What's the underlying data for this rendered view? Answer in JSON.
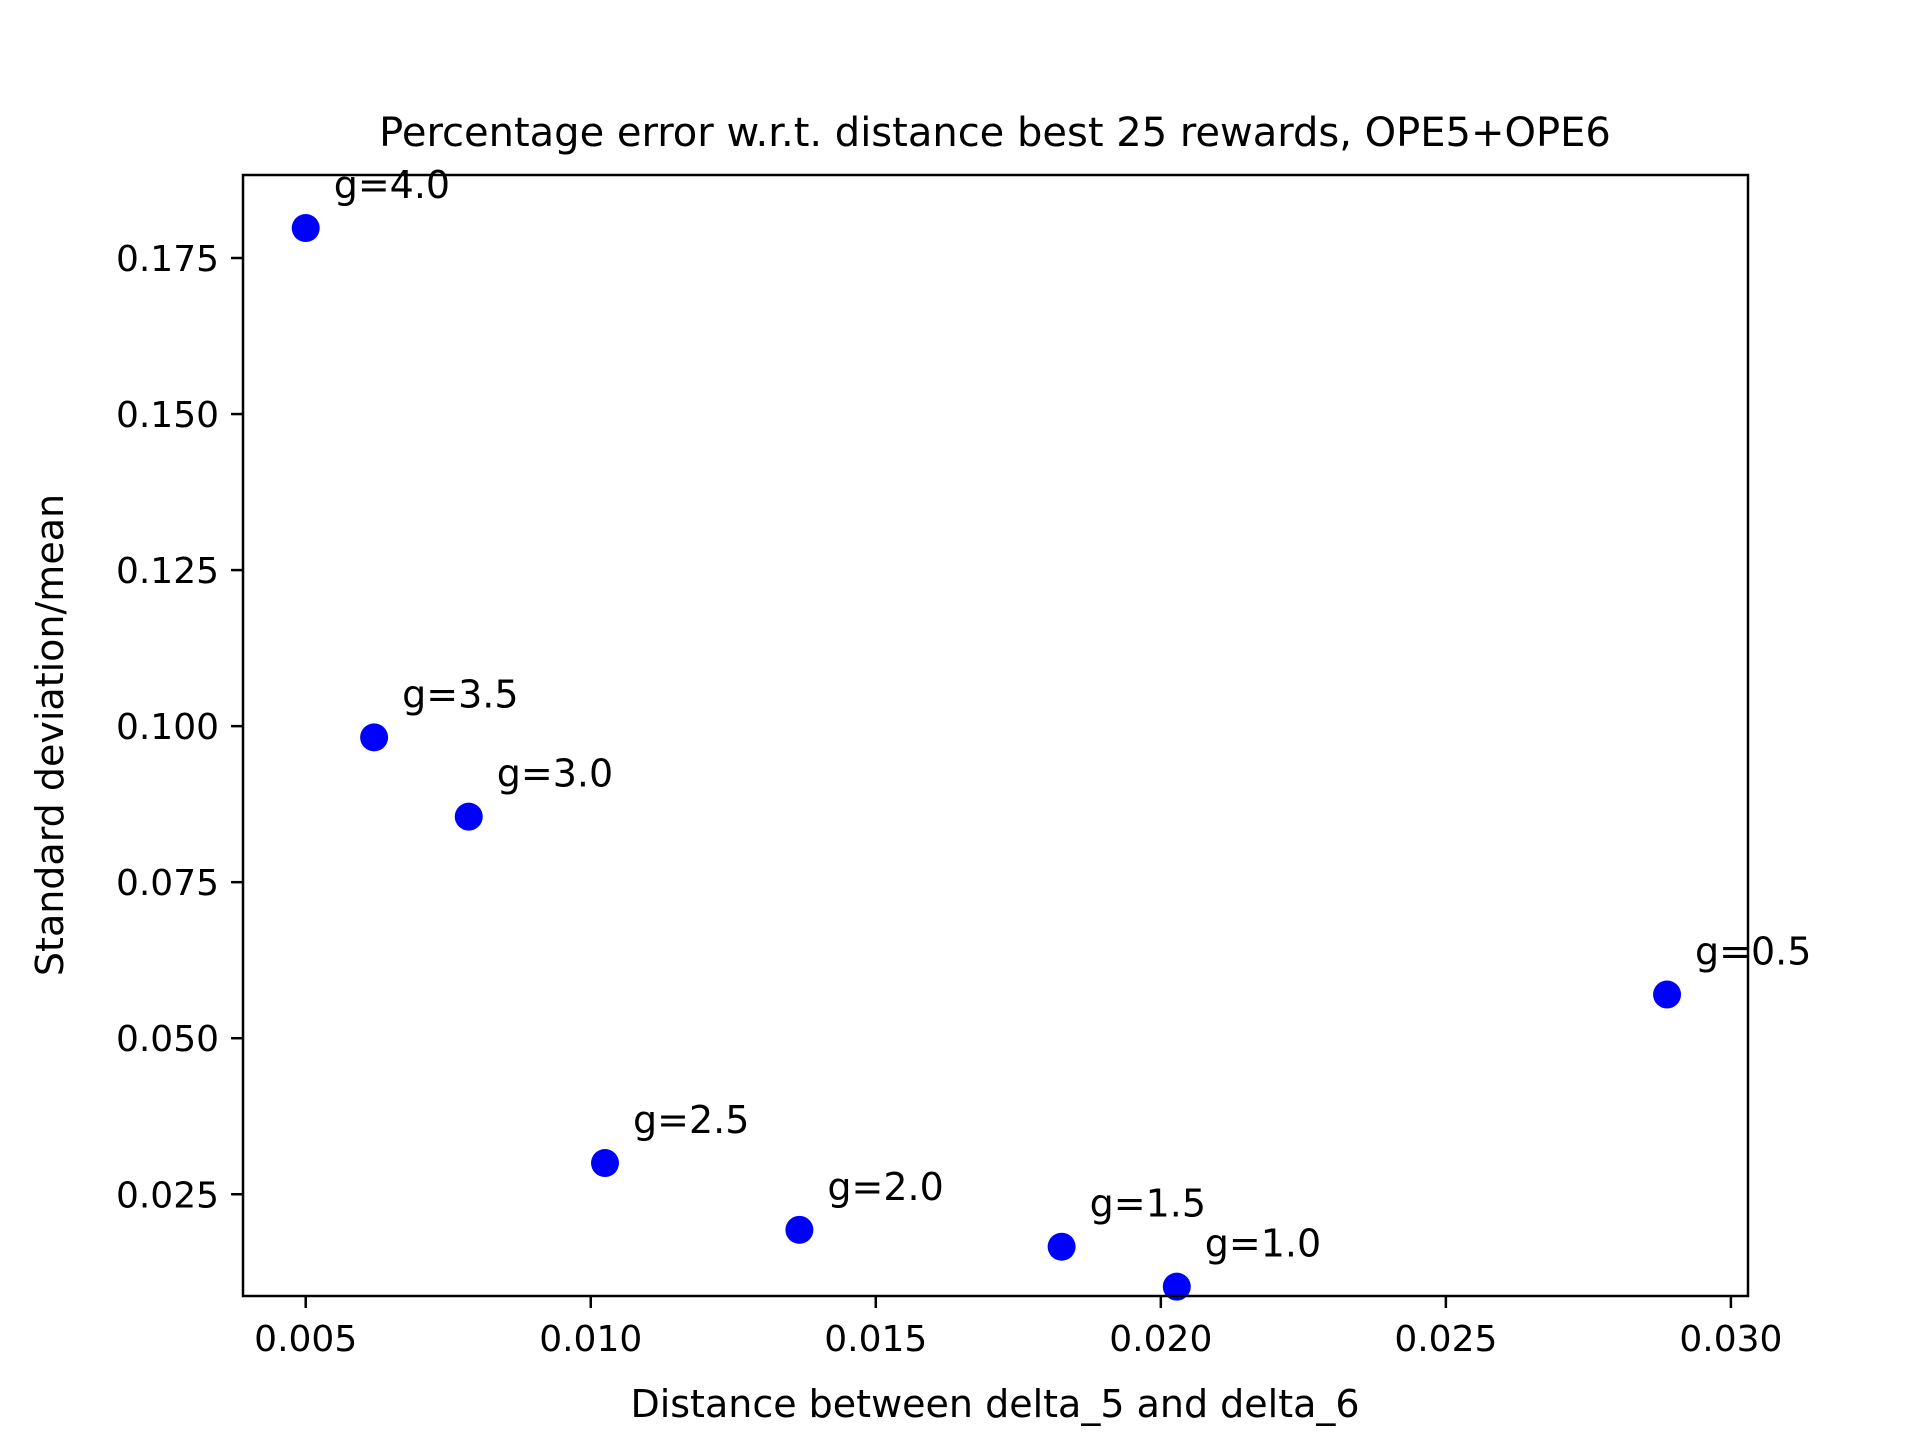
{
  "chart_data": {
    "type": "scatter",
    "title": "Percentage error w.r.t. distance best 25 rewards, OPE5+OPE6",
    "xlabel": "Distance between delta_5 and delta_6",
    "ylabel": "Standard deviation/mean",
    "xlim": [
      0.0039,
      0.0303
    ],
    "ylim": [
      0.0087,
      0.1883
    ],
    "xticks": [
      0.005,
      0.01,
      0.015,
      0.02,
      0.025,
      0.03
    ],
    "xtick_labels": [
      "0.005",
      "0.010",
      "0.015",
      "0.020",
      "0.025",
      "0.030"
    ],
    "yticks": [
      0.025,
      0.05,
      0.075,
      0.1,
      0.125,
      0.15,
      0.175
    ],
    "ytick_labels": [
      "0.025",
      "0.050",
      "0.075",
      "0.100",
      "0.125",
      "0.150",
      "0.175"
    ],
    "grid": false,
    "marker_color": "#0000ff",
    "points": [
      {
        "x": 0.005,
        "y": 0.1798,
        "label": "g=4.0"
      },
      {
        "x": 0.0062,
        "y": 0.0982,
        "label": "g=3.5"
      },
      {
        "x": 0.00786,
        "y": 0.0855,
        "label": "g=3.0"
      },
      {
        "x": 0.01025,
        "y": 0.03,
        "label": "g=2.5"
      },
      {
        "x": 0.01366,
        "y": 0.0193,
        "label": "g=2.0"
      },
      {
        "x": 0.01826,
        "y": 0.0166,
        "label": "g=1.5"
      },
      {
        "x": 0.02028,
        "y": 0.0102,
        "label": "g=1.0"
      },
      {
        "x": 0.02888,
        "y": 0.057,
        "label": "g=0.5"
      }
    ]
  }
}
